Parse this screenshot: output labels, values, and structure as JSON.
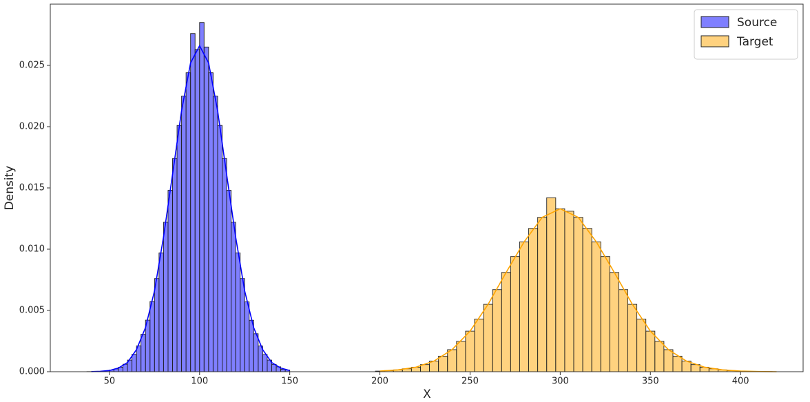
{
  "chart_data": {
    "type": "histogram",
    "xlabel": "X",
    "ylabel": "Density",
    "xlim": [
      17.2,
      434.7
    ],
    "ylim": [
      0,
      0.03
    ],
    "xticks": [
      50,
      100,
      150,
      200,
      250,
      300,
      350,
      400
    ],
    "yticks": [
      {
        "value": 0,
        "label": "0.000"
      },
      {
        "value": 0.005,
        "label": "0.005"
      },
      {
        "value": 0.01,
        "label": "0.010"
      },
      {
        "value": 0.015,
        "label": "0.015"
      },
      {
        "value": 0.02,
        "label": "0.020"
      },
      {
        "value": 0.025,
        "label": "0.025"
      }
    ],
    "legend": "upper right",
    "series": [
      {
        "name": "Source",
        "color": "#0000ff",
        "opacity": 0.5,
        "bins": [
          37.5,
          40,
          42.5,
          45,
          47.5,
          50,
          52.5,
          55,
          57.5,
          60,
          62.5,
          65,
          67.5,
          70,
          72.5,
          75,
          77.5,
          80,
          82.5,
          85,
          87.5,
          90,
          92.5,
          95,
          97.5,
          100,
          102.5,
          105,
          107.5,
          110,
          112.5,
          115,
          117.5,
          120,
          122.5,
          125,
          127.5,
          130,
          132.5,
          135,
          137.5,
          140,
          142.5,
          145,
          147.5,
          150
        ],
        "values": [
          1e-05,
          1e-05,
          2e-05,
          4e-05,
          8e-05,
          0.00014,
          0.00023,
          0.00037,
          0.00061,
          0.00095,
          0.00142,
          0.00211,
          0.00306,
          0.00421,
          0.00573,
          0.0076,
          0.0097,
          0.0122,
          0.0148,
          0.0174,
          0.0201,
          0.0225,
          0.0244,
          0.0276,
          0.0263,
          0.0285,
          0.0265,
          0.0244,
          0.0225,
          0.0201,
          0.0174,
          0.0148,
          0.0122,
          0.0097,
          0.0076,
          0.0057,
          0.0042,
          0.0031,
          0.0021,
          0.0014,
          0.00095,
          0.0006,
          0.0004,
          0.0002,
          0.00014
        ],
        "kde": {
          "x": [
            40,
            45,
            50,
            55,
            60,
            65,
            70,
            75,
            80,
            85,
            90,
            95,
            100,
            105,
            110,
            115,
            120,
            125,
            130,
            135,
            140,
            145,
            150
          ],
          "values": [
            1e-05,
            3e-05,
            0.0001,
            0.0003,
            0.00075,
            0.0018,
            0.0036,
            0.0066,
            0.011,
            0.0161,
            0.0213,
            0.0252,
            0.0266,
            0.0252,
            0.0213,
            0.0161,
            0.011,
            0.0066,
            0.0036,
            0.0018,
            0.00075,
            0.0003,
            0.0001
          ]
        }
      },
      {
        "name": "Target",
        "color": "#ffa500",
        "opacity": 0.5,
        "bins": [
          197.5,
          202.5,
          207.5,
          212.5,
          217.5,
          222.5,
          227.5,
          232.5,
          237.5,
          242.5,
          247.5,
          252.5,
          257.5,
          262.5,
          267.5,
          272.5,
          277.5,
          282.5,
          287.5,
          292.5,
          297.5,
          302.5,
          307.5,
          312.5,
          317.5,
          322.5,
          327.5,
          332.5,
          337.5,
          342.5,
          347.5,
          352.5,
          357.5,
          362.5,
          367.5,
          372.5,
          377.5,
          382.5,
          387.5,
          392.5,
          397.5,
          402.5,
          407.5,
          412.5,
          417.5,
          422.5
        ],
        "values": [
          5e-05,
          9e-05,
          0.00015,
          0.00024,
          0.00037,
          0.00058,
          0.00087,
          0.00127,
          0.0018,
          0.00248,
          0.00331,
          0.0043,
          0.0055,
          0.0067,
          0.0081,
          0.0094,
          0.0106,
          0.0117,
          0.0126,
          0.0142,
          0.0133,
          0.0131,
          0.0126,
          0.0117,
          0.0106,
          0.0094,
          0.0081,
          0.0067,
          0.0055,
          0.0043,
          0.00331,
          0.00248,
          0.0018,
          0.00127,
          0.00087,
          0.00058,
          0.00037,
          0.00024,
          0.00015,
          9e-05,
          5e-05,
          3e-05,
          2e-05,
          1e-05,
          0
        ],
        "kde": {
          "x": [
            200,
            210,
            220,
            230,
            240,
            250,
            260,
            270,
            280,
            290,
            300,
            310,
            320,
            330,
            340,
            350,
            360,
            370,
            380,
            390,
            400,
            410,
            420
          ],
          "values": [
            5e-05,
            0.00015,
            0.00037,
            0.00087,
            0.0018,
            0.00331,
            0.0055,
            0.0081,
            0.0106,
            0.0126,
            0.0133,
            0.0126,
            0.0106,
            0.0081,
            0.0055,
            0.00331,
            0.0018,
            0.00087,
            0.00037,
            0.00015,
            5e-05,
            2e-05,
            0
          ]
        }
      }
    ]
  }
}
